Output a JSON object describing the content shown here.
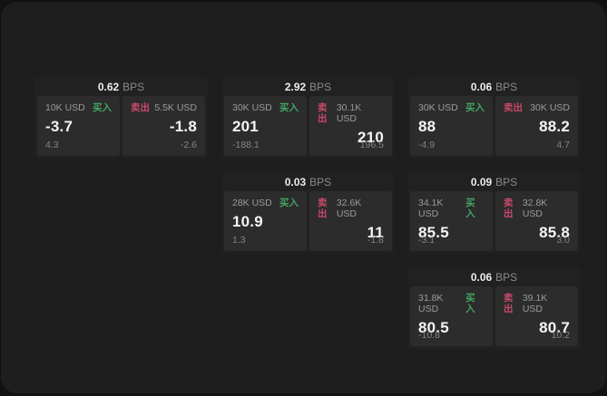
{
  "labels": {
    "bps_unit": "BPS",
    "buy": "买入",
    "sell": "卖出"
  },
  "colors": {
    "buy_green": "#43a562",
    "sell_red": "#c9486b",
    "panel_background": "#2c2c2c",
    "card_background": "#212121",
    "app_background": "#1e1e1e"
  },
  "cards": [
    {
      "bps_value": "0.62",
      "buy": {
        "size": "10K USD",
        "main": "-3.7",
        "sub": "4.3"
      },
      "sell": {
        "size": "5.5K USD",
        "main": "-1.8",
        "sub": "-2.6"
      }
    },
    {
      "bps_value": "2.92",
      "buy": {
        "size": "30K USD",
        "main": "201",
        "sub": "-188.1"
      },
      "sell": {
        "size": "30.1K USD",
        "main": "210",
        "sub": "196.5"
      }
    },
    {
      "bps_value": "0.06",
      "buy": {
        "size": "30K USD",
        "main": "88",
        "sub": "-4.9"
      },
      "sell": {
        "size": "30K USD",
        "main": "88.2",
        "sub": "4.7"
      }
    },
    {
      "bps_value": "0.03",
      "buy": {
        "size": "28K USD",
        "main": "10.9",
        "sub": "1.3"
      },
      "sell": {
        "size": "32.6K USD",
        "main": "11",
        "sub": "-1.8"
      }
    },
    {
      "bps_value": "0.09",
      "buy": {
        "size": "34.1K USD",
        "main": "85.5",
        "sub": "-3.1"
      },
      "sell": {
        "size": "32.8K USD",
        "main": "85.8",
        "sub": "3.0"
      }
    },
    {
      "bps_value": "0.06",
      "buy": {
        "size": "31.8K USD",
        "main": "80.5",
        "sub": "-10.8"
      },
      "sell": {
        "size": "39.1K USD",
        "main": "80.7",
        "sub": "10.2"
      }
    }
  ]
}
